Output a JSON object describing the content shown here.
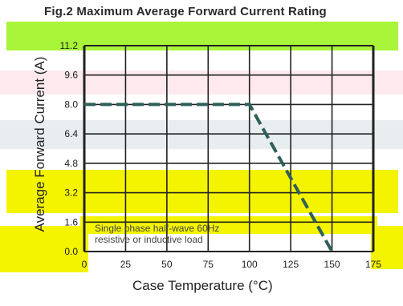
{
  "chart_data": {
    "type": "line",
    "title": "Fig.2  Maximum Average Forward Current Rating",
    "xlabel": "Case Temperature (°C)",
    "ylabel": "Average Forward Current (A)",
    "x_ticks": [
      "0",
      "25",
      "50",
      "75",
      "100",
      "125",
      "150",
      "175"
    ],
    "y_ticks": [
      "0.0",
      "1.6",
      "3.2",
      "4.8",
      "6.4",
      "8.0",
      "9.6",
      "11.2"
    ],
    "xlim": [
      0,
      175
    ],
    "ylim": [
      0,
      11.2
    ],
    "grid": true,
    "series": [
      {
        "x": [
          0,
          100,
          150
        ],
        "y": [
          8.0,
          8.0,
          0.0
        ]
      }
    ],
    "annotations": [
      "Single phase half-wave 60Hz",
      "resistive or inductive load"
    ]
  },
  "colors": {
    "curve": "#2f5f5a",
    "grid": "#222222",
    "band_yellow": "#f4f400",
    "band_green": "#a8f53a",
    "band_pink": "#fde9ee"
  }
}
